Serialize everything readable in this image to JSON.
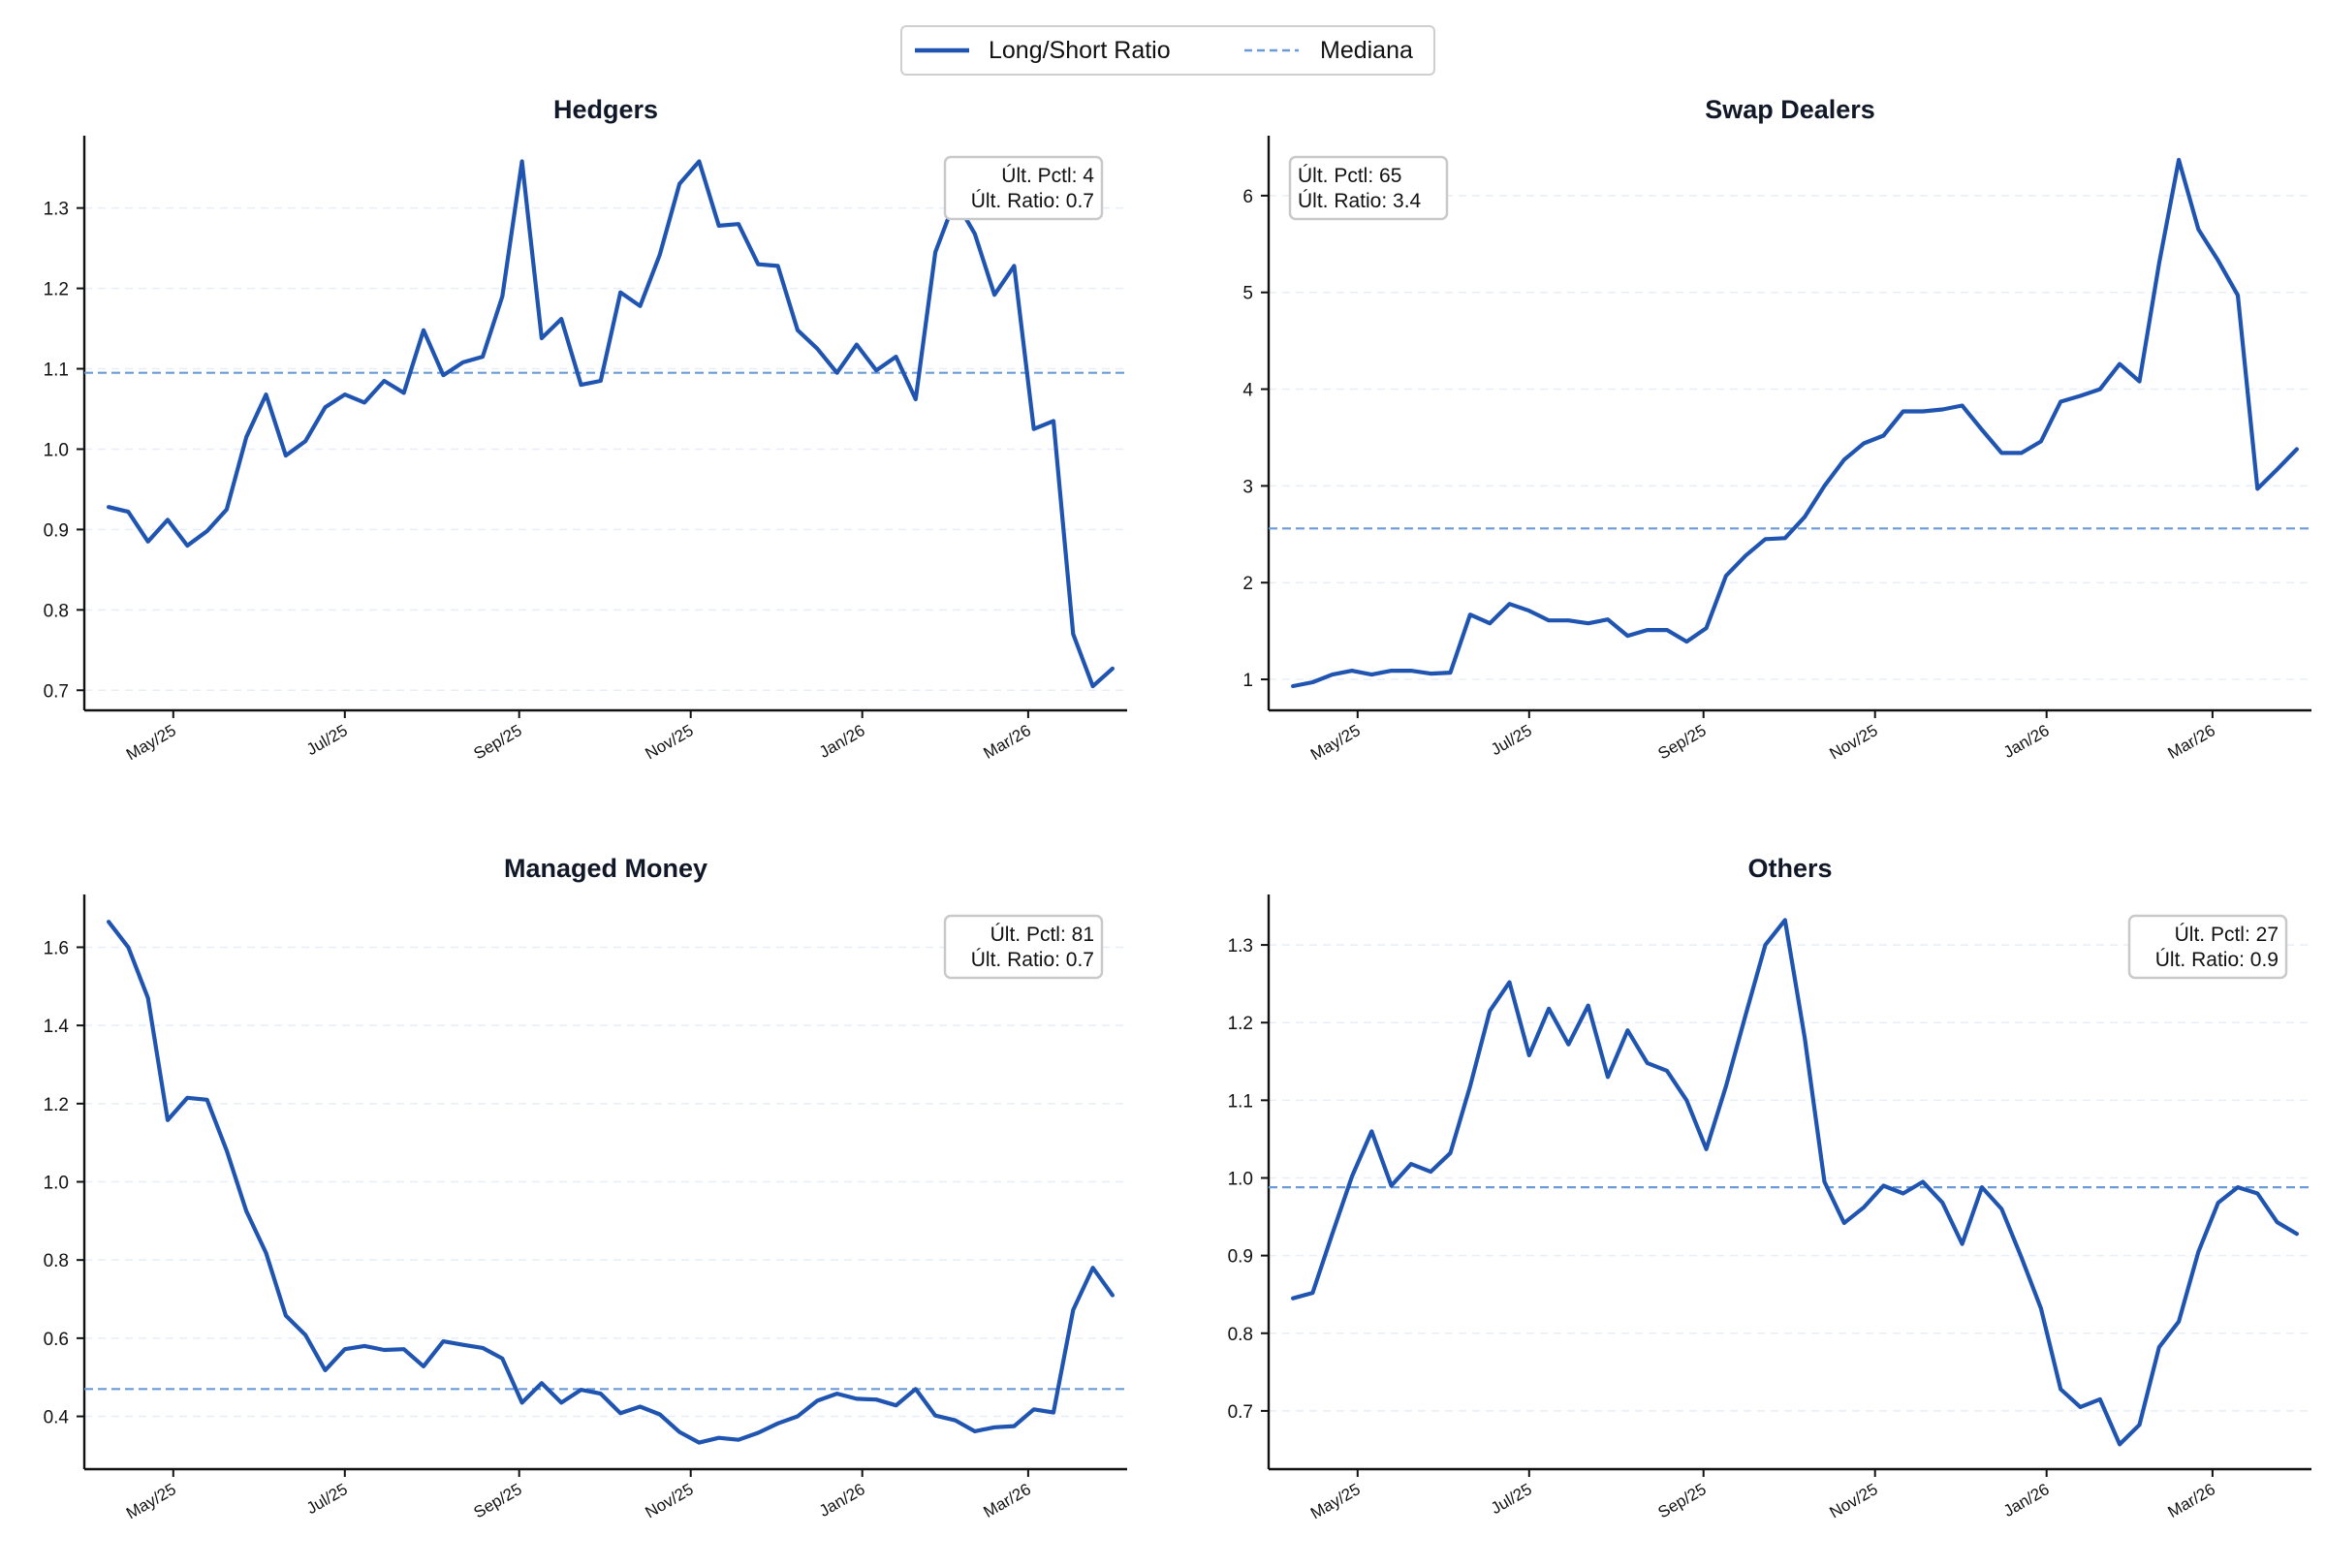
{
  "legend": {
    "series_label": "Long/Short Ratio",
    "median_label": "Mediana",
    "placement": "top-center"
  },
  "colors": {
    "series": "#1f55b0",
    "median": "#6b9bd6",
    "grid": "#e8eef7",
    "axis": "#111111"
  },
  "annotation_labels": {
    "pctl_prefix": "Últ. Pctl: ",
    "ratio_prefix": "Últ. Ratio: "
  },
  "chart_data": [
    {
      "type": "line",
      "title": "Hedgers",
      "x_ticks": [
        "May/25",
        "Jul/25",
        "Sep/25",
        "Nov/25",
        "Jan/26",
        "Mar/26"
      ],
      "x_tick_dates": [
        "2025-05-01",
        "2025-07-01",
        "2025-09-01",
        "2025-11-01",
        "2026-01-01",
        "2026-03-01"
      ],
      "x_start": "2025-04-08",
      "x_step_days": 7,
      "y_ticks": [
        0.7,
        0.8,
        0.9,
        1.0,
        1.1,
        1.2,
        1.3
      ],
      "y_tick_labels": [
        "0.7",
        "0.8",
        "0.9",
        "1.0",
        "1.1",
        "1.2",
        "1.3"
      ],
      "ylim": [
        0.675,
        1.39
      ],
      "grid": true,
      "median": 1.095,
      "annotation": {
        "pctl": "4",
        "ratio": "0.7",
        "position": "top-right"
      },
      "series": [
        {
          "name": "Long/Short Ratio",
          "values": [
            0.928,
            0.922,
            0.885,
            0.912,
            0.88,
            0.898,
            0.925,
            1.015,
            1.068,
            0.992,
            1.01,
            1.052,
            1.068,
            1.058,
            1.085,
            1.07,
            1.148,
            1.092,
            1.108,
            1.115,
            1.19,
            1.358,
            1.138,
            1.162,
            1.08,
            1.085,
            1.195,
            1.178,
            1.242,
            1.33,
            1.358,
            1.278,
            1.28,
            1.23,
            1.228,
            1.148,
            1.125,
            1.095,
            1.13,
            1.098,
            1.115,
            1.062,
            1.245,
            1.31,
            1.268,
            1.192,
            1.228,
            1.025,
            1.035,
            0.77,
            0.705,
            0.727
          ]
        }
      ]
    },
    {
      "type": "line",
      "title": "Swap Dealers",
      "x_ticks": [
        "May/25",
        "Jul/25",
        "Sep/25",
        "Nov/25",
        "Jan/26",
        "Mar/26"
      ],
      "x_tick_dates": [
        "2025-05-01",
        "2025-07-01",
        "2025-09-01",
        "2025-11-01",
        "2026-01-01",
        "2026-03-01"
      ],
      "x_start": "2025-04-08",
      "x_step_days": 7,
      "y_ticks": [
        1,
        2,
        3,
        4,
        5,
        6
      ],
      "y_tick_labels": [
        "1",
        "2",
        "3",
        "4",
        "5",
        "6"
      ],
      "ylim": [
        0.68,
        6.62
      ],
      "grid": true,
      "median": 2.56,
      "annotation": {
        "pctl": "65",
        "ratio": "3.4",
        "position": "top-left"
      },
      "series": [
        {
          "name": "Long/Short Ratio",
          "values": [
            0.93,
            0.97,
            1.05,
            1.09,
            1.05,
            1.09,
            1.09,
            1.06,
            1.07,
            1.67,
            1.58,
            1.78,
            1.71,
            1.61,
            1.61,
            1.58,
            1.62,
            1.45,
            1.51,
            1.51,
            1.39,
            1.53,
            2.07,
            2.28,
            2.45,
            2.46,
            2.68,
            3.0,
            3.27,
            3.44,
            3.52,
            3.77,
            3.77,
            3.79,
            3.83,
            3.58,
            3.34,
            3.34,
            3.46,
            3.87,
            3.93,
            4.0,
            4.26,
            4.08,
            5.3,
            6.37,
            5.65,
            5.33,
            4.97,
            2.97,
            3.17,
            3.38
          ]
        }
      ]
    },
    {
      "type": "line",
      "title": "Managed Money",
      "x_ticks": [
        "May/25",
        "Jul/25",
        "Sep/25",
        "Nov/25",
        "Jan/26",
        "Mar/26"
      ],
      "x_tick_dates": [
        "2025-05-01",
        "2025-07-01",
        "2025-09-01",
        "2025-11-01",
        "2026-01-01",
        "2026-03-01"
      ],
      "x_start": "2025-04-08",
      "x_step_days": 7,
      "y_ticks": [
        0.4,
        0.6,
        0.8,
        1.0,
        1.2,
        1.4,
        1.6
      ],
      "y_tick_labels": [
        "0.4",
        "0.6",
        "0.8",
        "1.0",
        "1.2",
        "1.4",
        "1.6"
      ],
      "ylim": [
        0.265,
        1.735
      ],
      "grid": true,
      "median": 0.47,
      "annotation": {
        "pctl": "81",
        "ratio": "0.7",
        "position": "top-right"
      },
      "series": [
        {
          "name": "Long/Short Ratio",
          "values": [
            1.665,
            1.6,
            1.47,
            1.158,
            1.215,
            1.21,
            1.08,
            0.925,
            0.818,
            0.658,
            0.608,
            0.518,
            0.572,
            0.58,
            0.57,
            0.572,
            0.528,
            0.592,
            0.583,
            0.575,
            0.548,
            0.435,
            0.485,
            0.435,
            0.468,
            0.458,
            0.408,
            0.425,
            0.405,
            0.36,
            0.333,
            0.345,
            0.34,
            0.358,
            0.382,
            0.4,
            0.44,
            0.458,
            0.445,
            0.443,
            0.428,
            0.47,
            0.402,
            0.39,
            0.362,
            0.372,
            0.375,
            0.418,
            0.41,
            0.672,
            0.78,
            0.71
          ]
        }
      ]
    },
    {
      "type": "line",
      "title": "Others",
      "x_ticks": [
        "May/25",
        "Jul/25",
        "Sep/25",
        "Nov/25",
        "Jan/26",
        "Mar/26"
      ],
      "x_tick_dates": [
        "2025-05-01",
        "2025-07-01",
        "2025-09-01",
        "2025-11-01",
        "2026-01-01",
        "2026-03-01"
      ],
      "x_start": "2025-04-08",
      "x_step_days": 7,
      "y_ticks": [
        0.7,
        0.8,
        0.9,
        1.0,
        1.1,
        1.2,
        1.3
      ],
      "y_tick_labels": [
        "0.7",
        "0.8",
        "0.9",
        "1.0",
        "1.1",
        "1.2",
        "1.3"
      ],
      "ylim": [
        0.625,
        1.365
      ],
      "grid": true,
      "median": 0.988,
      "annotation": {
        "pctl": "27",
        "ratio": "0.9",
        "position": "top-right"
      },
      "series": [
        {
          "name": "Long/Short Ratio",
          "values": [
            0.845,
            0.852,
            0.928,
            1.002,
            1.06,
            0.99,
            1.018,
            1.008,
            1.032,
            1.118,
            1.215,
            1.252,
            1.158,
            1.218,
            1.172,
            1.222,
            1.13,
            1.19,
            1.148,
            1.138,
            1.1,
            1.037,
            1.118,
            1.21,
            1.3,
            1.332,
            1.18,
            0.995,
            0.942,
            0.962,
            0.99,
            0.98,
            0.995,
            0.968,
            0.915,
            0.988,
            0.96,
            0.898,
            0.832,
            0.728,
            0.705,
            0.715,
            0.657,
            0.682,
            0.782,
            0.815,
            0.905,
            0.968,
            0.988,
            0.98,
            0.943,
            0.928
          ]
        }
      ]
    }
  ]
}
